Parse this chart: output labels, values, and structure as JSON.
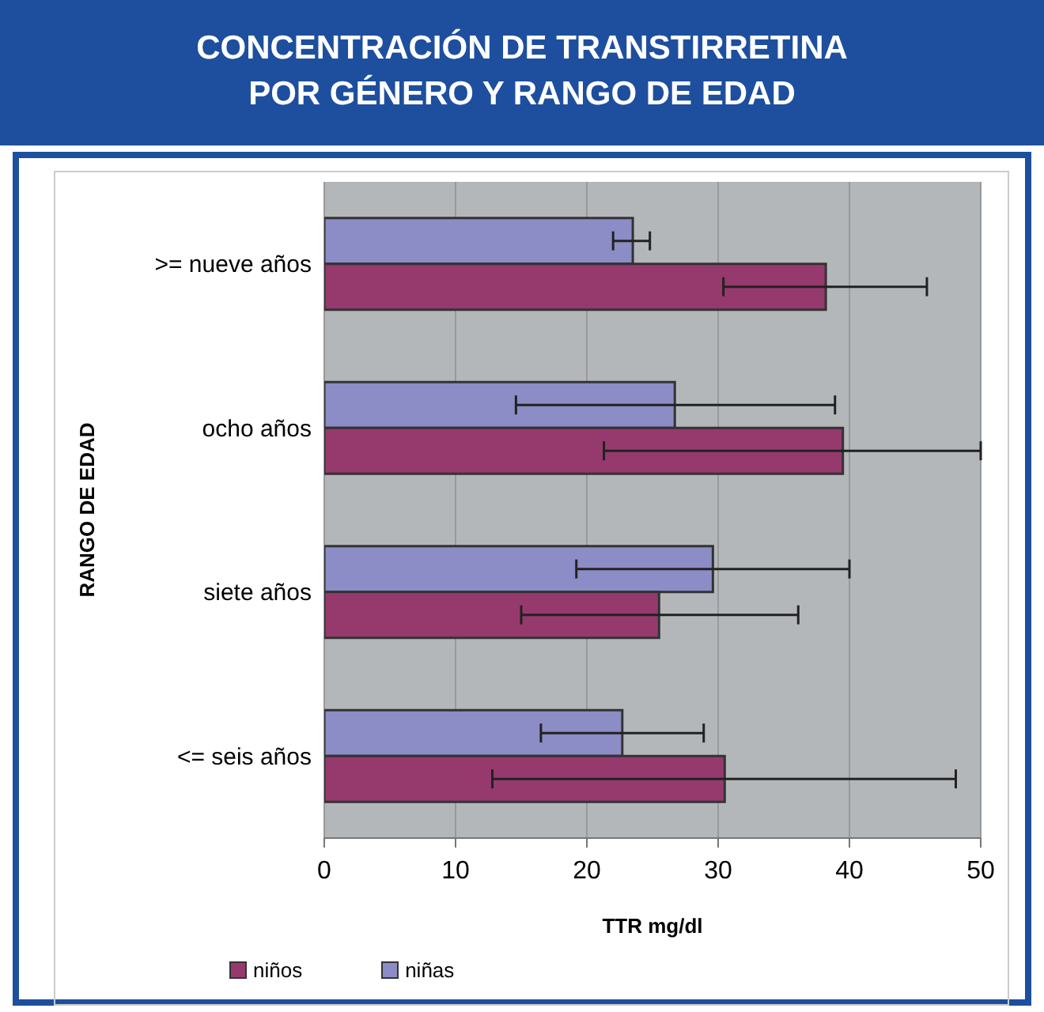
{
  "chart_data": {
    "type": "bar",
    "orientation": "horizontal",
    "title": "CONCENTRACIÓN DE TRANSTIRRETINA\nPOR GÉNERO Y RANGO DE EDAD",
    "xlabel": "TTR mg/dl",
    "ylabel": "RANGO DE EDAD",
    "categories": [
      ">= nueve años",
      "ocho años",
      "siete años",
      "<= seis años"
    ],
    "series": [
      {
        "name": "niños",
        "color": "#963a6e",
        "values": [
          38.2,
          39.5,
          25.5,
          30.5
        ],
        "errors": [
          [
            30.4,
            45.9
          ],
          [
            21.3,
            50
          ],
          [
            15.0,
            36.1
          ],
          [
            12.8,
            48.1
          ]
        ]
      },
      {
        "name": "niñas",
        "color": "#8c8cc6",
        "values": [
          23.5,
          26.7,
          29.6,
          22.7
        ],
        "errors": [
          [
            22.0,
            24.8
          ],
          [
            14.6,
            38.9
          ],
          [
            19.2,
            40.0
          ],
          [
            16.5,
            28.9
          ]
        ]
      }
    ],
    "xlim": [
      0,
      50
    ],
    "xticks": [
      0,
      10,
      20,
      30,
      40,
      50
    ],
    "grid": "x",
    "legend": "bottom left"
  }
}
